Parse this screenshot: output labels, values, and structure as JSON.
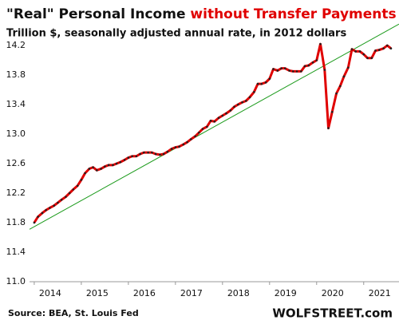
{
  "chart_data": {
    "type": "line",
    "title": "\"Real\" Personal Income",
    "title_highlight": "without Transfer Payments",
    "subtitle": "Trillion $, seasonally adjusted annual rate, in 2012 dollars",
    "source": "Source: BEA, St. Louis Fed",
    "watermark": "WOLFSTREET.com",
    "xlim": [
      2013.9,
      2021.75
    ],
    "xticks": [
      2014,
      2015,
      2016,
      2017,
      2018,
      2019,
      2020,
      2021
    ],
    "ylim": [
      11,
      14.5
    ],
    "yticks": [
      {
        "value": 11,
        "label": "11.0"
      },
      11.4,
      11.8,
      12.2,
      12.6,
      {
        "value": 13,
        "label": "13.0"
      },
      13.4,
      13.8,
      14.2
    ],
    "grid": false,
    "series": [
      {
        "color": "#e00000",
        "marker_color": "#222",
        "x": [
          2014.0,
          2014.08,
          2014.17,
          2014.25,
          2014.33,
          2014.42,
          2014.5,
          2014.58,
          2014.67,
          2014.75,
          2014.83,
          2014.92,
          2015.0,
          2015.08,
          2015.17,
          2015.25,
          2015.33,
          2015.42,
          2015.5,
          2015.58,
          2015.67,
          2015.75,
          2015.83,
          2015.92,
          2016.0,
          2016.08,
          2016.17,
          2016.25,
          2016.33,
          2016.42,
          2016.5,
          2016.58,
          2016.67,
          2016.75,
          2016.83,
          2016.92,
          2017.0,
          2017.08,
          2017.17,
          2017.25,
          2017.33,
          2017.42,
          2017.5,
          2017.58,
          2017.67,
          2017.75,
          2017.83,
          2017.92,
          2018.0,
          2018.08,
          2018.17,
          2018.25,
          2018.33,
          2018.42,
          2018.5,
          2018.58,
          2018.67,
          2018.75,
          2018.83,
          2018.92,
          2019.0,
          2019.08,
          2019.17,
          2019.25,
          2019.33,
          2019.42,
          2019.5,
          2019.58,
          2019.67,
          2019.75,
          2019.83,
          2019.92,
          2020.0,
          2020.08,
          2020.17,
          2020.25,
          2020.33,
          2020.42,
          2020.5,
          2020.58,
          2020.67,
          2020.75,
          2020.83,
          2020.92,
          2021.0,
          2021.08,
          2021.17,
          2021.25,
          2021.33,
          2021.42,
          2021.5,
          2021.58
        ],
        "values": [
          11.8,
          11.88,
          11.93,
          11.97,
          12.0,
          12.03,
          12.07,
          12.11,
          12.15,
          12.2,
          12.25,
          12.3,
          12.38,
          12.47,
          12.53,
          12.55,
          12.51,
          12.53,
          12.56,
          12.58,
          12.58,
          12.6,
          12.62,
          12.65,
          12.68,
          12.7,
          12.7,
          12.73,
          12.75,
          12.75,
          12.75,
          12.73,
          12.72,
          12.73,
          12.76,
          12.8,
          12.82,
          12.83,
          12.86,
          12.89,
          12.93,
          12.97,
          13.02,
          13.07,
          13.1,
          13.18,
          13.17,
          13.22,
          13.25,
          13.28,
          13.32,
          13.37,
          13.4,
          13.43,
          13.45,
          13.5,
          13.57,
          13.68,
          13.68,
          13.7,
          13.75,
          13.88,
          13.86,
          13.89,
          13.89,
          13.86,
          13.85,
          13.85,
          13.85,
          13.92,
          13.93,
          13.97,
          14.0,
          14.22,
          13.87,
          13.08,
          13.3,
          13.55,
          13.65,
          13.78,
          13.9,
          14.15,
          14.12,
          14.12,
          14.08,
          14.03,
          14.03,
          14.13,
          14.14,
          14.16,
          14.2,
          14.16
        ]
      }
    ],
    "trendline": {
      "color": "#1a9a1a",
      "x": [
        2013.9,
        2021.75
      ],
      "values": [
        11.71,
        14.49
      ]
    }
  }
}
